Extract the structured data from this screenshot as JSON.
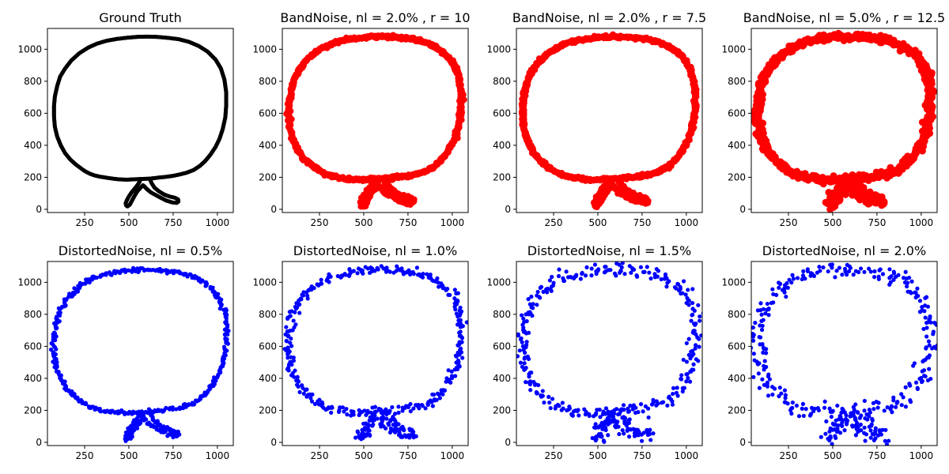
{
  "chart_data": [
    {
      "type": "scatter",
      "title": "Ground Truth",
      "color": "#000000",
      "style": "band",
      "noise_level": 0,
      "xlabel": "",
      "ylabel": "",
      "xlim": [
        40,
        1090
      ],
      "ylim": [
        -20,
        1130
      ],
      "xticks": [
        250,
        500,
        750,
        1000
      ],
      "yticks": [
        0,
        200,
        400,
        600,
        800,
        1000
      ]
    },
    {
      "type": "scatter",
      "title": "BandNoise, nl = 2.0% , r = 10",
      "color": "#ff0000",
      "style": "band",
      "noise_level": 2.0,
      "r": 10,
      "xlabel": "",
      "ylabel": "",
      "xlim": [
        40,
        1090
      ],
      "ylim": [
        -20,
        1130
      ],
      "xticks": [
        250,
        500,
        750,
        1000
      ],
      "yticks": [
        0,
        200,
        400,
        600,
        800,
        1000
      ]
    },
    {
      "type": "scatter",
      "title": "BandNoise, nl = 2.0% , r = 7.5",
      "color": "#ff0000",
      "style": "band",
      "noise_level": 2.0,
      "r": 7.5,
      "xlabel": "",
      "ylabel": "",
      "xlim": [
        40,
        1090
      ],
      "ylim": [
        -20,
        1130
      ],
      "xticks": [
        250,
        500,
        750,
        1000
      ],
      "yticks": [
        0,
        200,
        400,
        600,
        800,
        1000
      ]
    },
    {
      "type": "scatter",
      "title": "BandNoise, nl = 5.0% , r = 12.5",
      "color": "#ff0000",
      "style": "band",
      "noise_level": 5.0,
      "r": 12.5,
      "xlabel": "",
      "ylabel": "",
      "xlim": [
        40,
        1090
      ],
      "ylim": [
        -20,
        1130
      ],
      "xticks": [
        250,
        500,
        750,
        1000
      ],
      "yticks": [
        0,
        200,
        400,
        600,
        800,
        1000
      ]
    },
    {
      "type": "scatter",
      "title": "DistortedNoise, nl = 0.5%",
      "color": "#0000ff",
      "style": "points",
      "noise_level": 0.5,
      "xlabel": "",
      "ylabel": "",
      "xlim": [
        40,
        1090
      ],
      "ylim": [
        -20,
        1130
      ],
      "xticks": [
        250,
        500,
        750,
        1000
      ],
      "yticks": [
        0,
        200,
        400,
        600,
        800,
        1000
      ]
    },
    {
      "type": "scatter",
      "title": "DistortedNoise, nl = 1.0%",
      "color": "#0000ff",
      "style": "points",
      "noise_level": 1.0,
      "xlabel": "",
      "ylabel": "",
      "xlim": [
        40,
        1090
      ],
      "ylim": [
        -20,
        1130
      ],
      "xticks": [
        250,
        500,
        750,
        1000
      ],
      "yticks": [
        0,
        200,
        400,
        600,
        800,
        1000
      ]
    },
    {
      "type": "scatter",
      "title": "DistortedNoise, nl = 1.5%",
      "color": "#0000ff",
      "style": "points",
      "noise_level": 1.5,
      "xlabel": "",
      "ylabel": "",
      "xlim": [
        40,
        1090
      ],
      "ylim": [
        -20,
        1130
      ],
      "xticks": [
        250,
        500,
        750,
        1000
      ],
      "yticks": [
        0,
        200,
        400,
        600,
        800,
        1000
      ]
    },
    {
      "type": "scatter",
      "title": "DistortedNoise, nl = 2.0%",
      "color": "#0000ff",
      "style": "points",
      "noise_level": 2.0,
      "xlabel": "",
      "ylabel": "",
      "xlim": [
        40,
        1090
      ],
      "ylim": [
        -20,
        1130
      ],
      "xticks": [
        250,
        500,
        750,
        1000
      ],
      "yticks": [
        0,
        200,
        400,
        600,
        800,
        1000
      ]
    }
  ],
  "shape_outline": [
    [
      540,
      188
    ],
    [
      490,
      185
    ],
    [
      445,
      187
    ],
    [
      405,
      192
    ],
    [
      370,
      198
    ],
    [
      335,
      204
    ],
    [
      305,
      212
    ],
    [
      280,
      222
    ],
    [
      255,
      236
    ],
    [
      230,
      255
    ],
    [
      200,
      280
    ],
    [
      170,
      310
    ],
    [
      140,
      350
    ],
    [
      115,
      400
    ],
    [
      95,
      455
    ],
    [
      82,
      515
    ],
    [
      77,
      580
    ],
    [
      77,
      645
    ],
    [
      82,
      705
    ],
    [
      95,
      770
    ],
    [
      112,
      830
    ],
    [
      140,
      880
    ],
    [
      175,
      930
    ],
    [
      220,
      975
    ],
    [
      270,
      1010
    ],
    [
      320,
      1035
    ],
    [
      375,
      1053
    ],
    [
      430,
      1064
    ],
    [
      490,
      1072
    ],
    [
      545,
      1077
    ],
    [
      600,
      1079
    ],
    [
      660,
      1077
    ],
    [
      720,
      1071
    ],
    [
      780,
      1063
    ],
    [
      840,
      1046
    ],
    [
      895,
      1020
    ],
    [
      945,
      985
    ],
    [
      990,
      935
    ],
    [
      1020,
      880
    ],
    [
      1040,
      810
    ],
    [
      1050,
      730
    ],
    [
      1050,
      650
    ],
    [
      1045,
      575
    ],
    [
      1030,
      500
    ],
    [
      1012,
      440
    ],
    [
      990,
      390
    ],
    [
      960,
      340
    ],
    [
      930,
      300
    ],
    [
      900,
      270
    ],
    [
      865,
      245
    ],
    [
      825,
      228
    ],
    [
      785,
      217
    ],
    [
      745,
      208
    ],
    [
      705,
      202
    ],
    [
      665,
      198
    ],
    [
      625,
      192
    ]
  ],
  "shape_stem": [
    [
      565,
      188
    ],
    [
      560,
      170
    ],
    [
      548,
      150
    ],
    [
      532,
      128
    ],
    [
      515,
      105
    ],
    [
      500,
      80
    ],
    [
      488,
      55
    ],
    [
      482,
      38
    ],
    [
      484,
      25
    ],
    [
      492,
      18
    ],
    [
      505,
      28
    ],
    [
      518,
      55
    ],
    [
      530,
      80
    ],
    [
      545,
      108
    ],
    [
      560,
      128
    ],
    [
      572,
      142
    ],
    [
      580,
      150
    ],
    [
      590,
      140
    ],
    [
      605,
      123
    ],
    [
      625,
      105
    ],
    [
      650,
      90
    ],
    [
      680,
      72
    ],
    [
      710,
      55
    ],
    [
      745,
      43
    ],
    [
      770,
      40
    ],
    [
      780,
      48
    ],
    [
      778,
      62
    ],
    [
      760,
      72
    ],
    [
      730,
      80
    ],
    [
      700,
      92
    ],
    [
      670,
      112
    ],
    [
      645,
      135
    ],
    [
      630,
      160
    ],
    [
      622,
      180
    ],
    [
      625,
      192
    ]
  ]
}
